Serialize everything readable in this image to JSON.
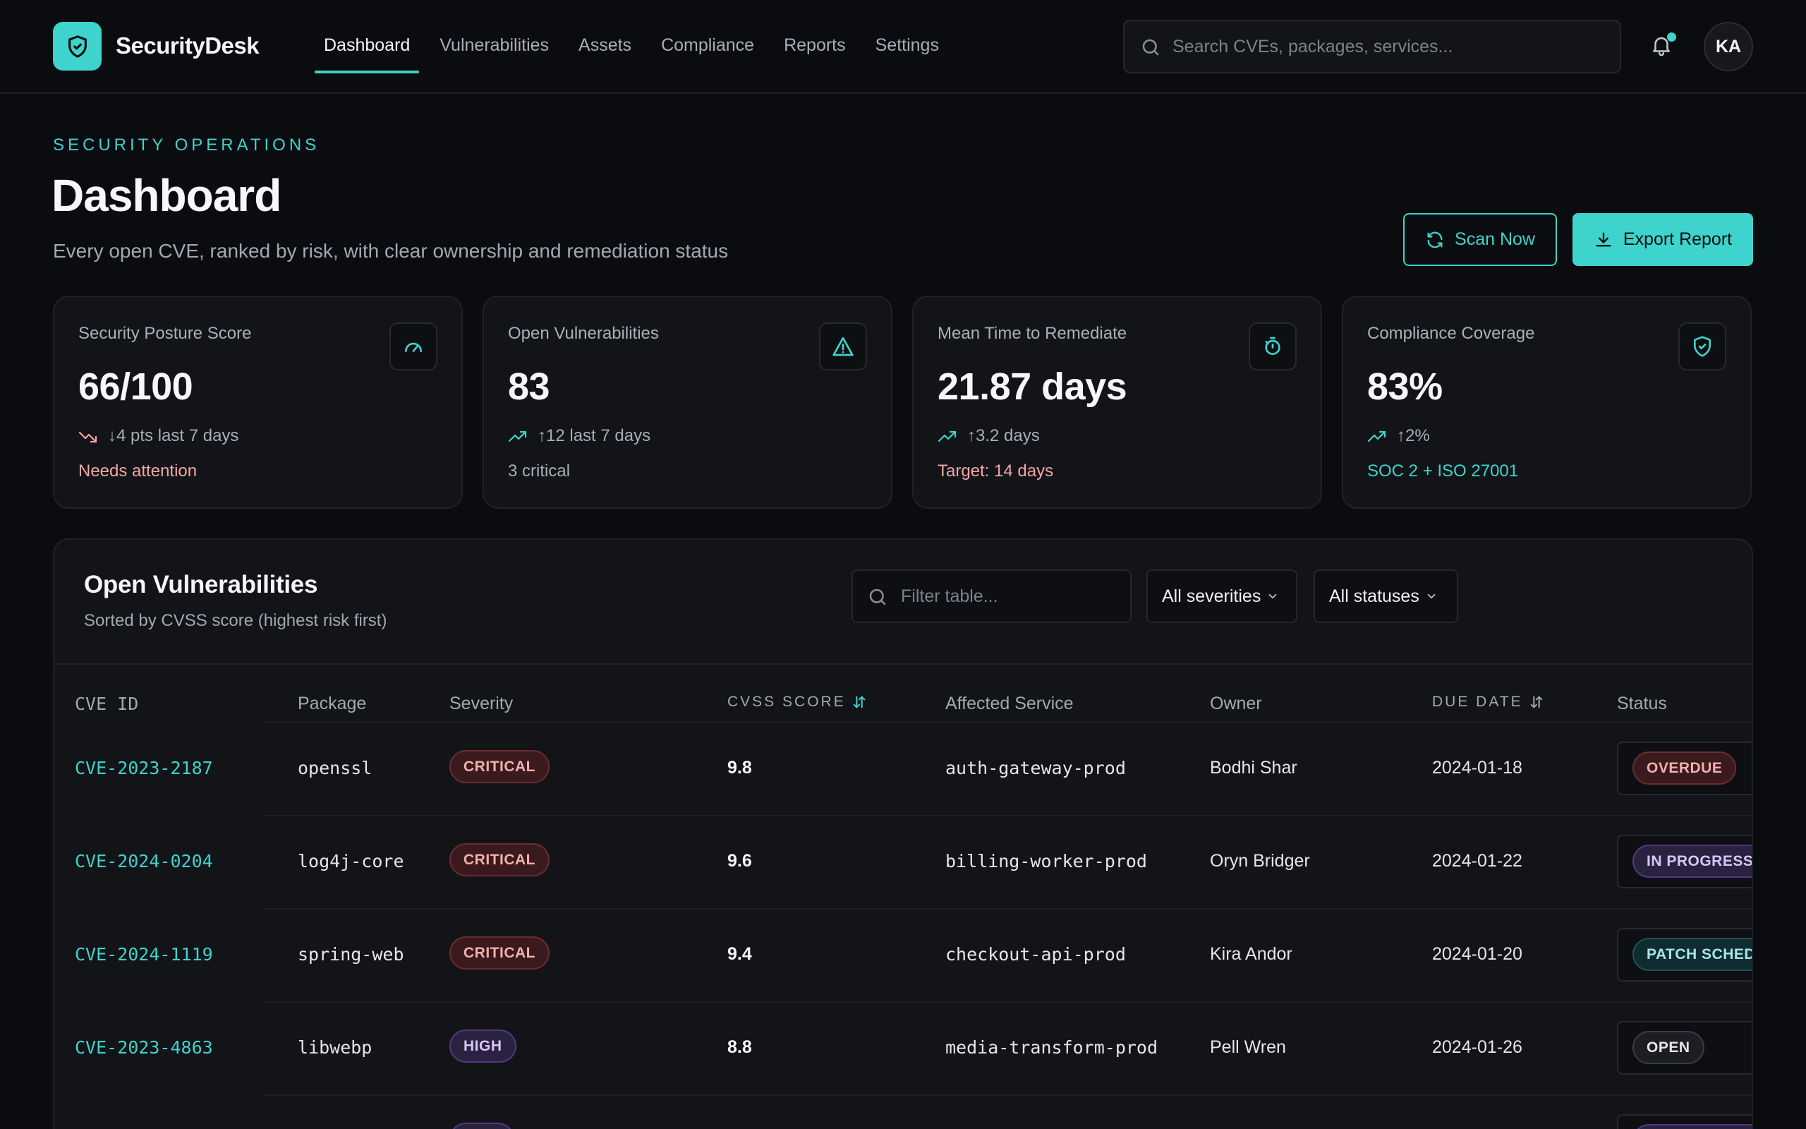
{
  "app": {
    "brand": "SecurityDesk",
    "nav": [
      "Dashboard",
      "Vulnerabilities",
      "Assets",
      "Compliance",
      "Reports",
      "Settings"
    ],
    "active_nav": "Dashboard",
    "search_placeholder": "Search CVEs, packages, services...",
    "avatar_initials": "KA",
    "accent_color": "#3ed3cc"
  },
  "header": {
    "eyebrow": "SECURITY OPERATIONS",
    "title": "Dashboard",
    "subtitle": "Every open CVE, ranked by risk, with clear ownership and remediation status",
    "scan_label": "Scan Now",
    "export_label": "Export Report"
  },
  "stats": [
    {
      "label": "Security Posture Score",
      "value": "66/100",
      "trend": "↓4 pts last 7 days",
      "trend_dir": "down",
      "foot": "Needs attention",
      "foot_color": "#f2a6a4",
      "icon": "gauge-icon"
    },
    {
      "label": "Open Vulnerabilities",
      "value": "83",
      "trend": "↑12 last 7 days",
      "trend_dir": "up",
      "foot": "3 critical",
      "foot_color": "#a8adb7",
      "icon": "warning-triangle-icon"
    },
    {
      "label": "Mean Time to Remediate",
      "value": "21.87 days",
      "trend": "↑3.2 days",
      "trend_dir": "up",
      "foot": "Target: 14 days",
      "foot_color": "#f2a6a4",
      "icon": "timer-icon"
    },
    {
      "label": "Compliance Coverage",
      "value": "83%",
      "trend": "↑2%",
      "trend_dir": "up",
      "foot": "SOC 2 + ISO 27001",
      "foot_color": "#3ed3cc",
      "icon": "shield-check-icon"
    }
  ],
  "table": {
    "title": "Open Vulnerabilities",
    "subtitle": "Sorted by CVSS score (highest risk first)",
    "filter_placeholder": "Filter table...",
    "severity_filter": "All severities",
    "status_filter": "All statuses",
    "columns": [
      "CVE ID",
      "Package",
      "Severity",
      "CVSS Score",
      "Affected Service",
      "Owner",
      "Due Date",
      "Status"
    ],
    "rows": [
      {
        "cve": "CVE-2023-2187",
        "package": "openssl",
        "severity": "CRITICAL",
        "score": "9.8",
        "service": "auth-gateway-prod",
        "owner": "Bodhi Shar",
        "due": "2024-01-18",
        "status": "OVERDUE"
      },
      {
        "cve": "CVE-2024-0204",
        "package": "log4j-core",
        "severity": "CRITICAL",
        "score": "9.6",
        "service": "billing-worker-prod",
        "owner": "Oryn Bridger",
        "due": "2024-01-22",
        "status": "IN PROGRESS"
      },
      {
        "cve": "CVE-2024-1119",
        "package": "spring-web",
        "severity": "CRITICAL",
        "score": "9.4",
        "service": "checkout-api-prod",
        "owner": "Kira Andor",
        "due": "2024-01-20",
        "status": "PATCH SCHEDULED"
      },
      {
        "cve": "CVE-2023-4863",
        "package": "libwebp",
        "severity": "HIGH",
        "score": "8.8",
        "service": "media-transform-prod",
        "owner": "Pell Wren",
        "due": "2024-01-26",
        "status": "OPEN"
      }
    ]
  }
}
